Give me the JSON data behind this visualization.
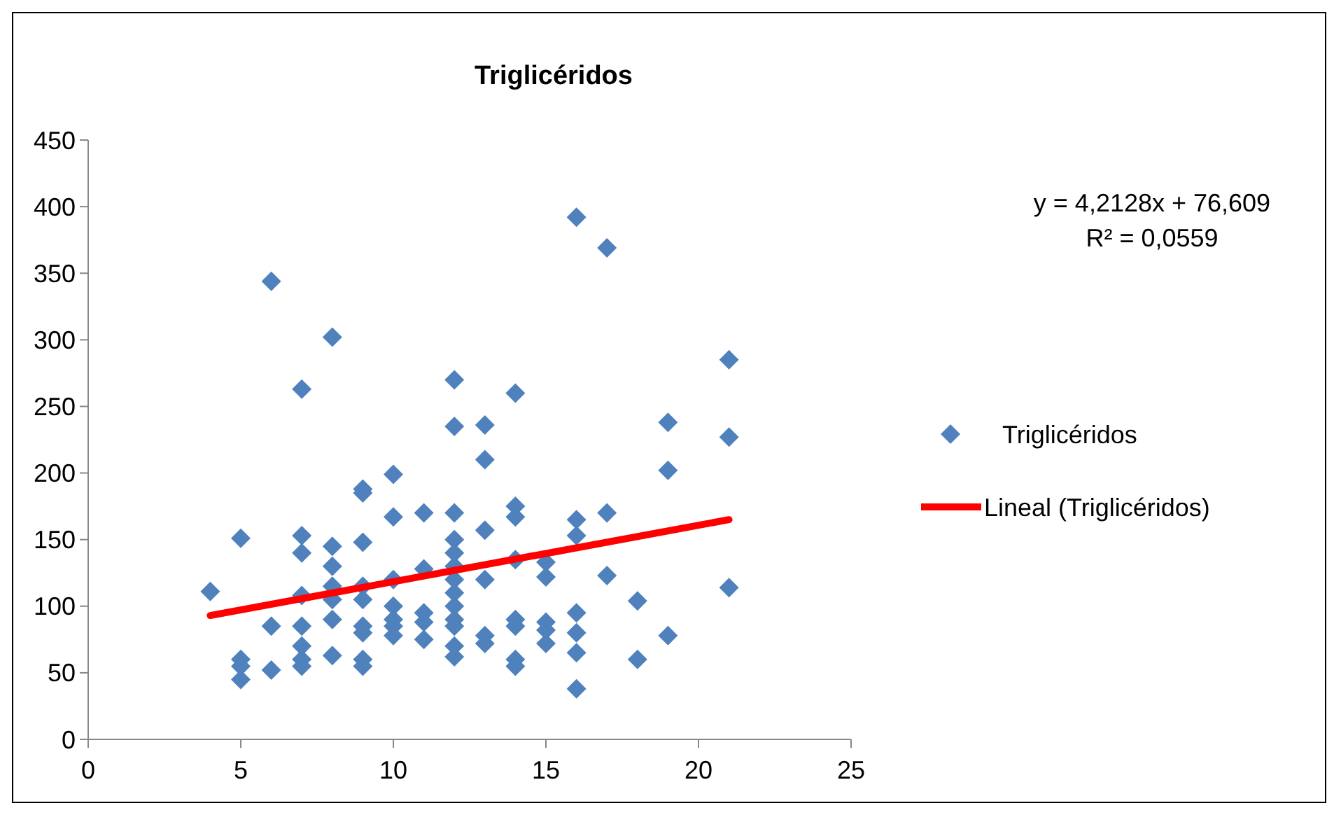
{
  "chart_data": {
    "type": "scatter",
    "title": "Triglicéridos",
    "xlim": [
      0,
      25
    ],
    "xticks": [
      0,
      5,
      10,
      15,
      20,
      25
    ],
    "ylim": [
      0,
      450
    ],
    "yticks": [
      0,
      50,
      100,
      150,
      200,
      250,
      300,
      350,
      400,
      450
    ],
    "grid": false,
    "legend": "right",
    "annotations": [
      "y = 4,2128x + 76,609",
      "R² = 0,0559"
    ],
    "series": [
      {
        "name": "Triglicéridos",
        "color": "#4f81bd",
        "marker": "diamond",
        "x": [
          4,
          5,
          5,
          5,
          5,
          6,
          6,
          6,
          7,
          7,
          7,
          7,
          7,
          7,
          7,
          7,
          8,
          8,
          8,
          8,
          8,
          8,
          8,
          9,
          9,
          9,
          9,
          9,
          9,
          9,
          9,
          9,
          10,
          10,
          10,
          10,
          10,
          10,
          10,
          11,
          11,
          11,
          11,
          11,
          12,
          12,
          12,
          12,
          12,
          12,
          12,
          12,
          12,
          12,
          12,
          12,
          12,
          13,
          13,
          13,
          13,
          13,
          13,
          14,
          14,
          14,
          14,
          14,
          14,
          14,
          14,
          15,
          15,
          15,
          15,
          15,
          16,
          16,
          16,
          16,
          16,
          16,
          16,
          17,
          17,
          17,
          18,
          18,
          19,
          19,
          19,
          21,
          21,
          21
        ],
        "values": [
          111,
          151,
          60,
          55,
          45,
          344,
          85,
          52,
          263,
          153,
          140,
          108,
          85,
          70,
          60,
          55,
          302,
          145,
          130,
          115,
          105,
          90,
          63,
          188,
          185,
          148,
          115,
          105,
          85,
          80,
          60,
          55,
          199,
          167,
          120,
          100,
          90,
          85,
          78,
          170,
          128,
          95,
          88,
          75,
          270,
          235,
          170,
          150,
          140,
          130,
          120,
          110,
          100,
          90,
          85,
          70,
          62,
          236,
          210,
          157,
          120,
          78,
          72,
          260,
          175,
          167,
          135,
          90,
          85,
          60,
          55,
          133,
          122,
          88,
          82,
          72,
          392,
          165,
          153,
          95,
          80,
          65,
          38,
          369,
          170,
          123,
          104,
          60,
          238,
          202,
          78,
          285,
          227,
          114
        ]
      },
      {
        "name": "Lineal (Triglicéridos)",
        "color": "#ff0000",
        "type": "line",
        "marker": "none",
        "x": [
          4,
          21
        ],
        "values": [
          93,
          165
        ]
      }
    ]
  }
}
